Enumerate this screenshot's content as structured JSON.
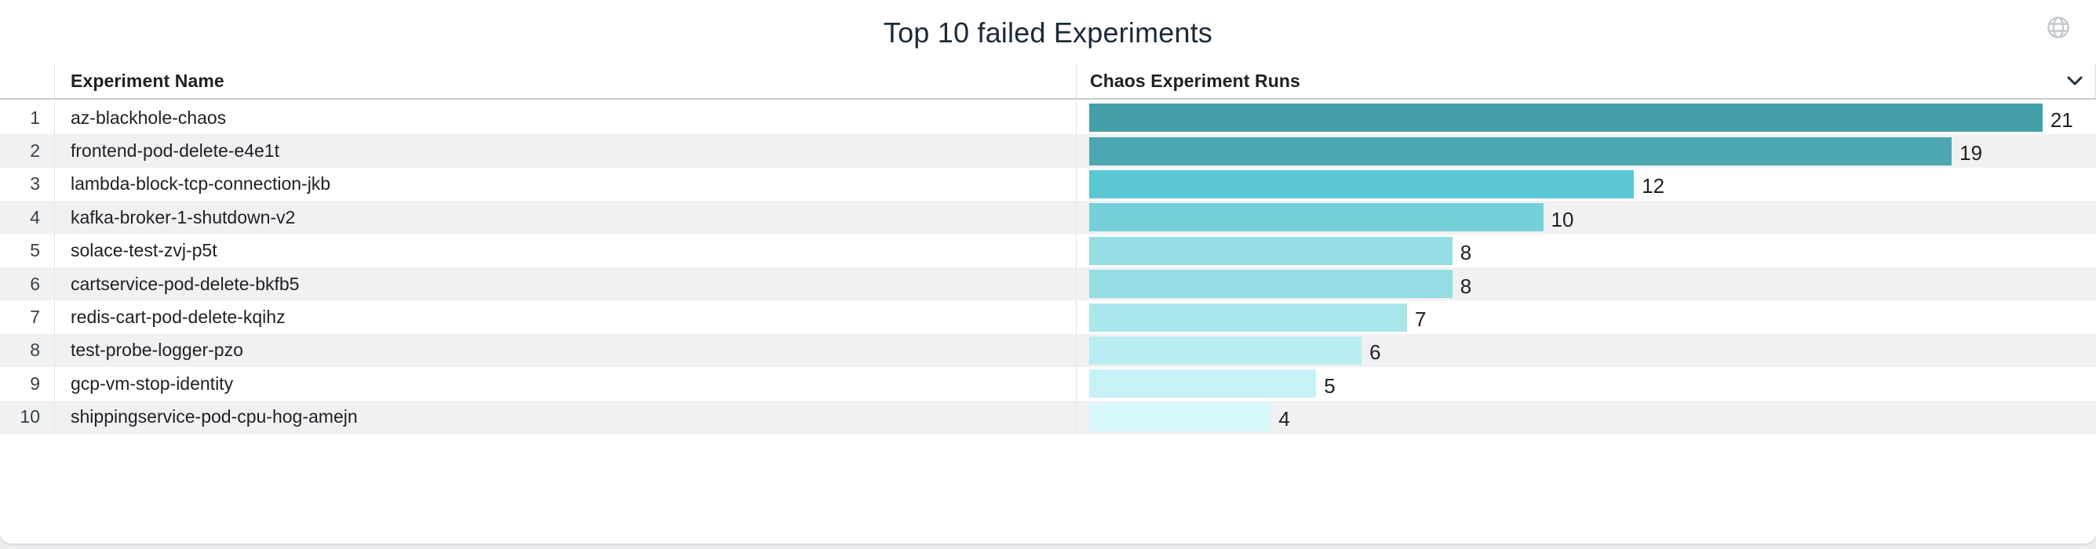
{
  "widget": {
    "title": "Top 10 failed Experiments",
    "header_icon": "globe",
    "column_menu_icon": "chevron-down"
  },
  "table": {
    "columns": {
      "name": "Experiment Name",
      "runs": "Chaos Experiment Runs"
    },
    "rows": [
      {
        "rank": "1",
        "name": "az-blackhole-chaos",
        "runs": 21,
        "bar_color": "#459fa9"
      },
      {
        "rank": "2",
        "name": "frontend-pod-delete-e4e1t",
        "runs": 19,
        "bar_color": "#4ba8b2"
      },
      {
        "rank": "3",
        "name": "lambda-block-tcp-connection-jkb",
        "runs": 12,
        "bar_color": "#5bc7d3"
      },
      {
        "rank": "4",
        "name": "kafka-broker-1-shutdown-v2",
        "runs": 10,
        "bar_color": "#74d1da"
      },
      {
        "rank": "5",
        "name": "solace-test-zvj-p5t",
        "runs": 8,
        "bar_color": "#94dee4"
      },
      {
        "rank": "6",
        "name": "cartservice-pod-delete-bkfb5",
        "runs": 8,
        "bar_color": "#94dee4"
      },
      {
        "rank": "7",
        "name": "redis-cart-pod-delete-kqihz",
        "runs": 7,
        "bar_color": "#a8e7ec"
      },
      {
        "rank": "8",
        "name": "test-probe-logger-pzo",
        "runs": 6,
        "bar_color": "#b9edf1"
      },
      {
        "rank": "9",
        "name": "gcp-vm-stop-identity",
        "runs": 5,
        "bar_color": "#c6f2f7"
      },
      {
        "rank": "10",
        "name": "shippingservice-pod-cpu-hog-amejn",
        "runs": 4,
        "bar_color": "#d7f8fb"
      }
    ]
  },
  "chart_data": {
    "type": "bar",
    "orientation": "horizontal",
    "title": "Top 10 failed Experiments",
    "xlabel": "Chaos Experiment Runs",
    "ylabel": "Experiment Name",
    "categories": [
      "az-blackhole-chaos",
      "frontend-pod-delete-e4e1t",
      "lambda-block-tcp-connection-jkb",
      "kafka-broker-1-shutdown-v2",
      "solace-test-zvj-p5t",
      "cartservice-pod-delete-bkfb5",
      "redis-cart-pod-delete-kqihz",
      "test-probe-logger-pzo",
      "gcp-vm-stop-identity",
      "shippingservice-pod-cpu-hog-amejn"
    ],
    "values": [
      21,
      19,
      12,
      10,
      8,
      8,
      7,
      6,
      5,
      4
    ],
    "xlim": [
      0,
      22.2
    ],
    "grid": false,
    "legend": false,
    "data_labels": true,
    "bar_colors": [
      "#459fa9",
      "#4ba8b2",
      "#5bc7d3",
      "#74d1da",
      "#94dee4",
      "#94dee4",
      "#a8e7ec",
      "#b9edf1",
      "#c6f2f7",
      "#d7f8fb"
    ]
  },
  "colors": {
    "row_stripe": "#f0f1f2",
    "header_underline": "#c7cbce",
    "divider": "#e3e5e7",
    "title_text": "#1c2a39",
    "cell_text": "#202124",
    "rank_text": "#3c4043",
    "globe_icon": "#c3c9d1",
    "chevron_icon": "#22303a",
    "page_background": "#ebecee",
    "card_background": "#ffffff"
  }
}
